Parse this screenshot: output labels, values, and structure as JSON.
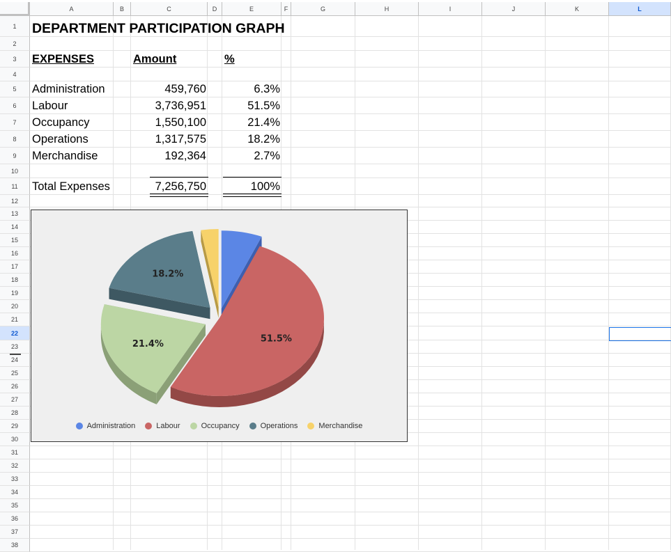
{
  "columns": [
    "A",
    "B",
    "C",
    "D",
    "E",
    "F",
    "G",
    "H",
    "I",
    "J",
    "K",
    "L"
  ],
  "selected_column": "L",
  "rows": [
    "1",
    "2",
    "3",
    "4",
    "5",
    "6",
    "7",
    "8",
    "9",
    "10",
    "11",
    "12",
    "13",
    "14",
    "15",
    "16",
    "17",
    "18",
    "19",
    "20",
    "21",
    "22",
    "23",
    "24",
    "25",
    "26",
    "27",
    "28",
    "29",
    "30",
    "31",
    "32",
    "33",
    "34",
    "35",
    "36",
    "37",
    "38"
  ],
  "selected_row": "22",
  "sheet": {
    "title": "DEPARTMENT PARTICIPATION GRAPH",
    "header_expenses": "EXPENSES",
    "header_amount": "Amount",
    "header_pct": "%",
    "items": [
      {
        "name": "Administration",
        "amount": "459,760",
        "pct": "6.3%"
      },
      {
        "name": "Labour",
        "amount": "3,736,951",
        "pct": "51.5%"
      },
      {
        "name": "Occupancy",
        "amount": "1,550,100",
        "pct": "21.4%"
      },
      {
        "name": "Operations",
        "amount": "1,317,575",
        "pct": "18.2%"
      },
      {
        "name": "Merchandise",
        "amount": "192,364",
        "pct": "2.7%"
      }
    ],
    "total_label": "Total Expenses",
    "total_amount": "7,256,750",
    "total_pct": "100%"
  },
  "chart_data": {
    "type": "pie",
    "categories": [
      "Administration",
      "Labour",
      "Occupancy",
      "Operations",
      "Merchandise"
    ],
    "values": [
      6.3,
      51.5,
      21.4,
      18.2,
      2.7
    ],
    "data_labels": [
      "",
      "51.5%",
      "21.4%",
      "18.2%",
      ""
    ],
    "colors": [
      "#5b86e5",
      "#c96564",
      "#bcd6a4",
      "#5a7d8a",
      "#f7d26a"
    ],
    "side_colors": [
      "#3d5fb0",
      "#934846",
      "#8ba077",
      "#3e5862",
      "#b89a44"
    ],
    "legend_position": "bottom",
    "title": "",
    "background": "#efefef"
  }
}
